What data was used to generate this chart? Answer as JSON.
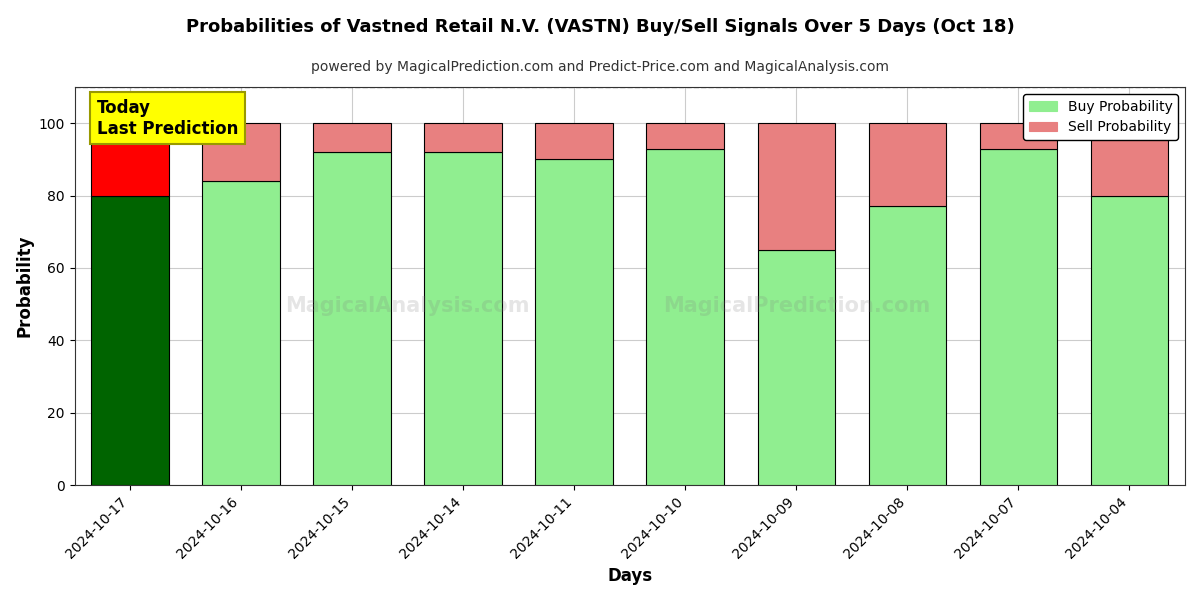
{
  "title": "Probabilities of Vastned Retail N.V. (VASTN) Buy/Sell Signals Over 5 Days (Oct 18)",
  "subtitle": "powered by MagicalPrediction.com and Predict-Price.com and MagicalAnalysis.com",
  "xlabel": "Days",
  "ylabel": "Probability",
  "dates": [
    "2024-10-17",
    "2024-10-16",
    "2024-10-15",
    "2024-10-14",
    "2024-10-11",
    "2024-10-10",
    "2024-10-09",
    "2024-10-08",
    "2024-10-07",
    "2024-10-04"
  ],
  "buy_probs": [
    80,
    84,
    92,
    92,
    90,
    93,
    65,
    77,
    93,
    80
  ],
  "sell_probs": [
    20,
    16,
    8,
    8,
    10,
    7,
    35,
    23,
    7,
    20
  ],
  "today_buy_color": "#006400",
  "today_sell_color": "#ff0000",
  "buy_color": "#90EE90",
  "sell_color": "#E88080",
  "bar_edge_color": "#000000",
  "ylim_min": 0,
  "ylim_max": 110,
  "yticks": [
    0,
    20,
    40,
    60,
    80,
    100
  ],
  "dashed_line_y": 110,
  "legend_buy_label": "Buy Probability",
  "legend_sell_label": "Sell Probability",
  "today_label_text": "Today\nLast Prediction",
  "background_color": "#ffffff",
  "grid_color": "#cccccc",
  "bar_width": 0.7
}
